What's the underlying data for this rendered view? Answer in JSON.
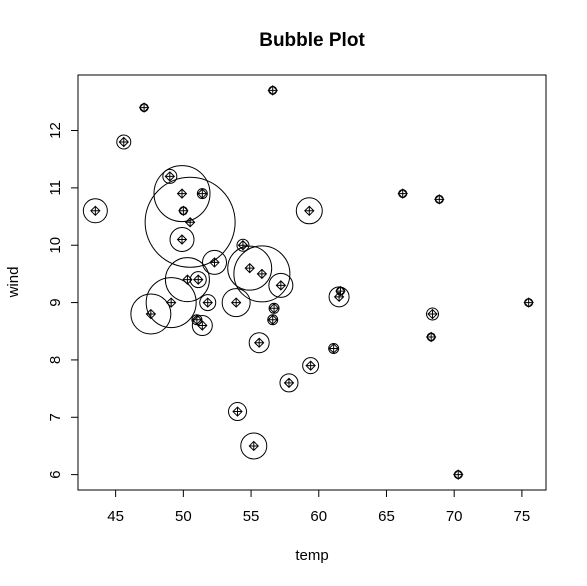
{
  "chart_data": {
    "type": "bubble",
    "title": "Bubble Plot",
    "x_label": "temp",
    "y_label": "wind",
    "x": [
      47.1,
      56.6,
      45.6,
      49.0,
      49.9,
      50.0,
      50.5,
      49.9,
      43.5,
      59.3,
      66.2,
      68.9,
      51.4,
      54.4,
      52.3,
      51.1,
      50.3,
      49.1,
      47.6,
      51.8,
      51.4,
      51.0,
      53.9,
      54.9,
      55.8,
      57.2,
      56.7,
      56.6,
      55.6,
      61.5,
      61.6,
      61.1,
      59.4,
      57.8,
      54.0,
      55.2,
      70.3,
      75.5,
      68.4,
      68.3
    ],
    "y": [
      12.4,
      12.7,
      11.8,
      11.2,
      10.9,
      10.6,
      10.4,
      10.1,
      10.6,
      10.6,
      10.9,
      10.8,
      10.9,
      10.0,
      9.7,
      9.4,
      9.4,
      9.0,
      8.8,
      9.0,
      8.6,
      8.7,
      9.0,
      9.6,
      9.5,
      9.3,
      8.9,
      8.7,
      8.3,
      9.1,
      9.2,
      8.2,
      7.9,
      7.6,
      7.1,
      6.5,
      6.0,
      9.0,
      8.8,
      8.4
    ],
    "sizes": [
      4,
      4,
      7,
      7,
      28,
      4,
      45,
      12,
      12,
      13,
      4,
      4,
      5,
      6,
      12,
      8,
      22,
      25,
      20,
      8,
      10,
      5,
      14,
      22,
      28,
      12,
      5,
      5,
      10,
      10,
      4,
      5,
      8,
      9,
      9,
      13,
      4,
      4,
      6,
      4
    ],
    "color": "#000000",
    "xlim": [
      42.22,
      76.78
    ],
    "xticks": [
      45,
      50,
      55,
      60,
      65,
      70,
      75
    ],
    "ylim": [
      5.732,
      12.968
    ],
    "yticks": [
      6,
      7,
      8,
      9,
      10,
      11,
      12
    ]
  }
}
